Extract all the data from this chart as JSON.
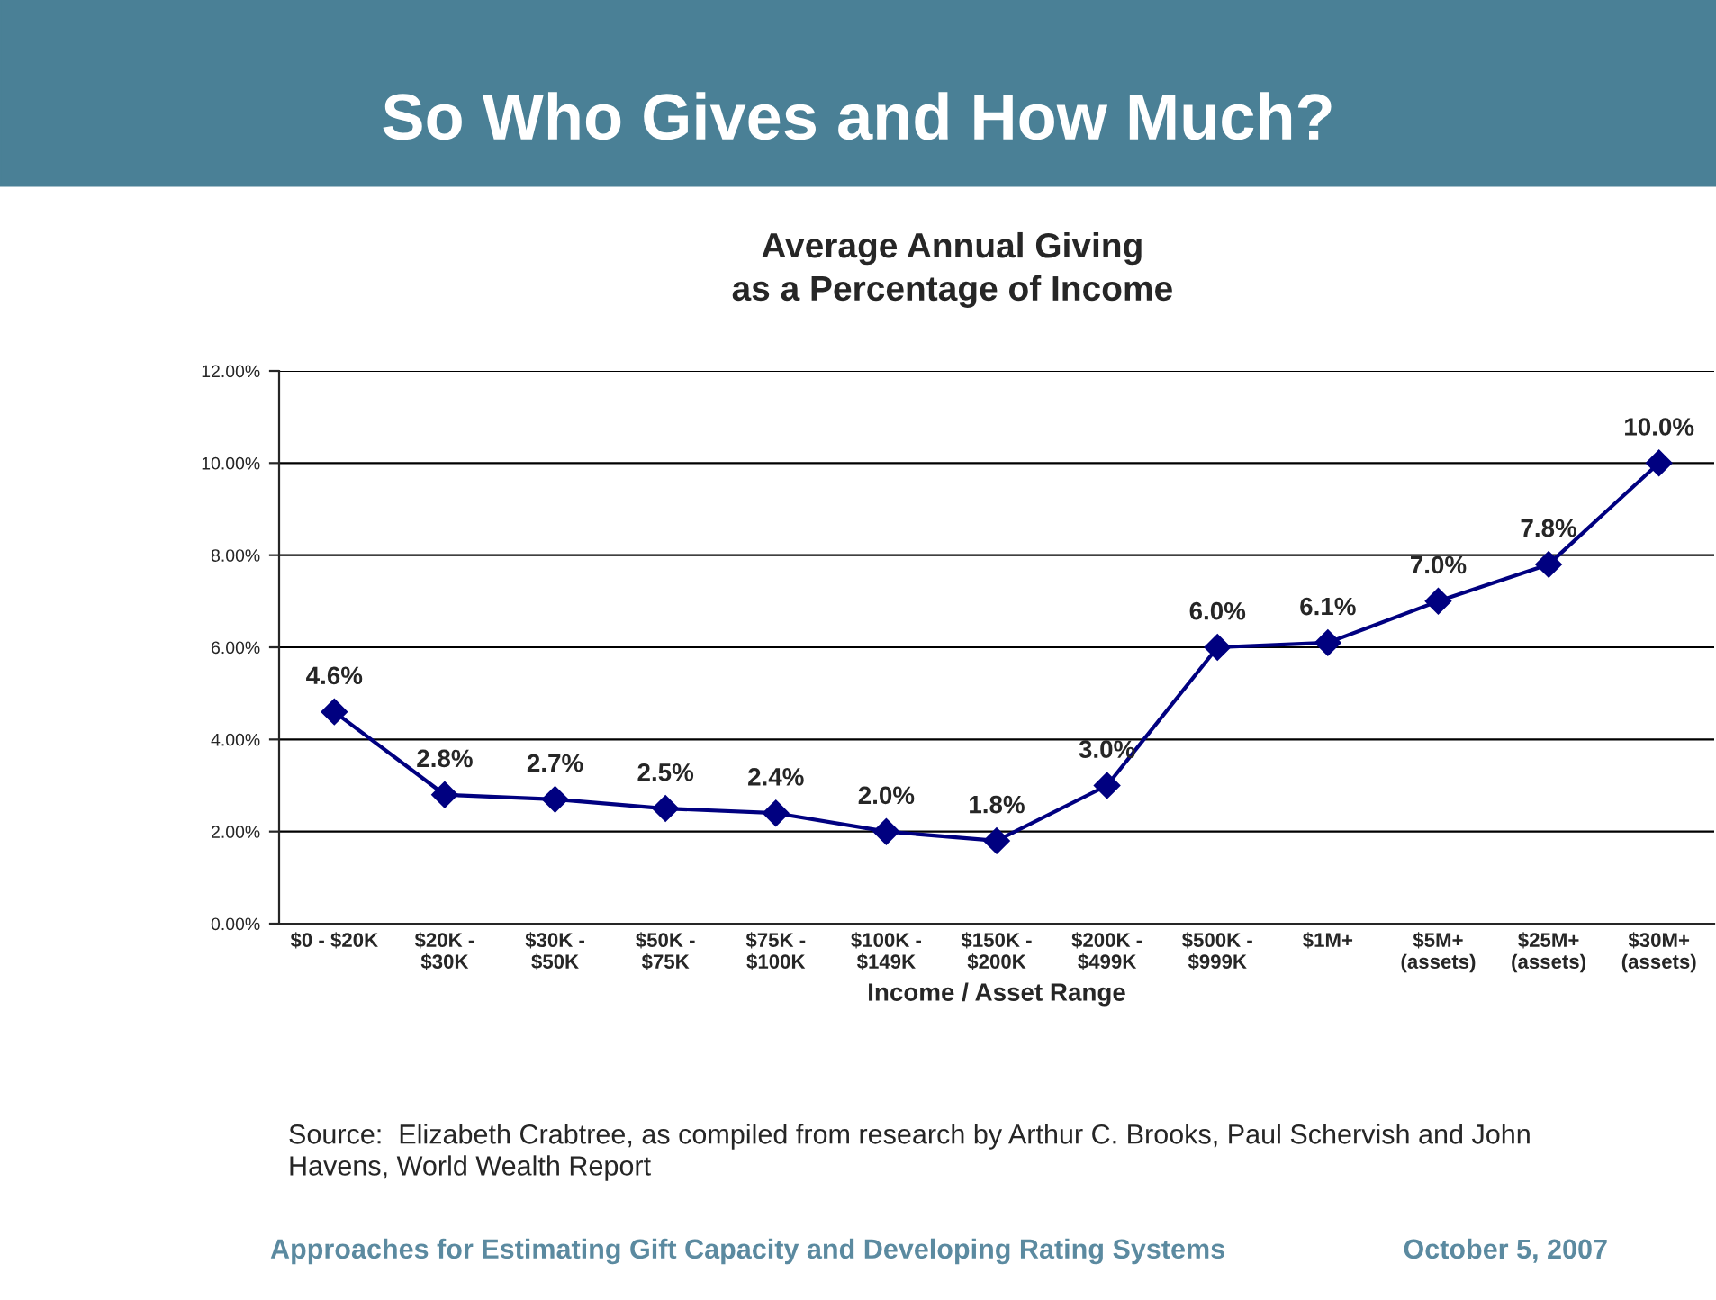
{
  "chart_data": {
    "type": "line",
    "title": "So Who Gives and How Much?",
    "subtitle": "Average Annual Giving\nas a Percentage of Income",
    "xlabel": "Income / Asset Range",
    "categories": [
      "$0 - $20K",
      "$20K -\n$30K",
      "$30K -\n$50K",
      "$50K -\n$75K",
      "$75K -\n$100K",
      "$100K -\n$149K",
      "$150K -\n$200K",
      "$200K -\n$499K",
      "$500K -\n$999K",
      "$1M+",
      "$5M+\n(assets)",
      "$25M+\n(assets)",
      "$30M+\n(assets)"
    ],
    "series": [
      {
        "color": "#000080",
        "values": [
          4.6,
          2.8,
          2.7,
          2.5,
          2.4,
          2.0,
          1.8,
          3.0,
          6.0,
          6.1,
          7.0,
          7.8,
          10.0
        ],
        "value_labels": [
          "4.6%",
          "2.8%",
          "2.7%",
          "2.5%",
          "2.4%",
          "2.0%",
          "1.8%",
          "3.0%",
          "6.0%",
          "6.1%",
          "7.0%",
          "7.8%",
          "10.0%"
        ]
      }
    ],
    "ylim": [
      0,
      12
    ],
    "yticks": [
      {
        "value": 0,
        "label": "0.00%"
      },
      {
        "value": 2,
        "label": "2.00%"
      },
      {
        "value": 4,
        "label": "4.00%"
      },
      {
        "value": 6,
        "label": "6.00%"
      },
      {
        "value": 8,
        "label": "8.00%"
      },
      {
        "value": 10,
        "label": "10.00%"
      },
      {
        "value": 12,
        "label": "12.00%"
      }
    ],
    "grid": "y",
    "legend": false,
    "marker": "diamond",
    "line_style": "solid",
    "annotations": [
      "Source:  Elizabeth Crabtree, as compiled from research by Arthur C. Brooks, Paul Schervish and John\nHavens, World Wealth Report",
      "Approaches for Estimating Gift Capacity and Developing Rating Systems",
      "October 5, 2007"
    ]
  }
}
